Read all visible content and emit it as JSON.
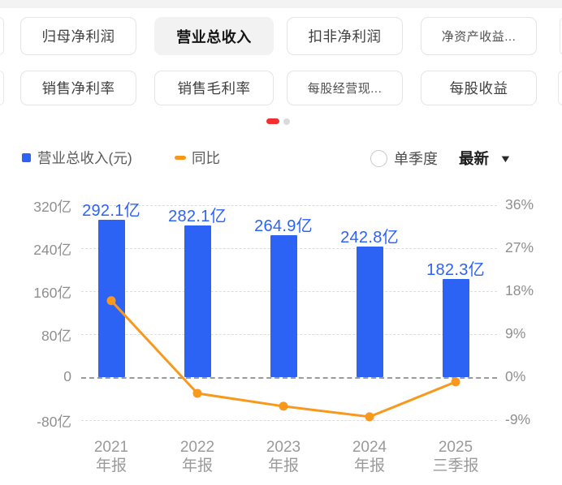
{
  "tabs": {
    "row1": [
      {
        "label": "归母净利润",
        "selected": false
      },
      {
        "label": "营业总收入",
        "selected": true
      },
      {
        "label": "扣非净利润",
        "selected": false
      },
      {
        "label": "净资产收益...",
        "selected": false
      }
    ],
    "row2": [
      {
        "label": "销售净利率",
        "selected": false
      },
      {
        "label": "销售毛利率",
        "selected": false
      },
      {
        "label": "每股经营现...",
        "selected": false
      },
      {
        "label": "每股收益",
        "selected": false
      }
    ]
  },
  "pagination": {
    "active_color": "#F22F2F",
    "inactive_color": "#DADADA"
  },
  "legend": {
    "bar_label": "营业总收入(元)",
    "line_label": "同比",
    "bar_color": "#2D63F4",
    "line_color": "#F8981D"
  },
  "controls": {
    "single_quarter_label": "单季度",
    "latest_label": "最新",
    "caret": "▼"
  },
  "chart_data": {
    "type": "bar+line",
    "categories": [
      {
        "year": "2021",
        "period": "年报"
      },
      {
        "year": "2022",
        "period": "年报"
      },
      {
        "year": "2023",
        "period": "年报"
      },
      {
        "year": "2024",
        "period": "年报"
      },
      {
        "year": "2025",
        "period": "三季报"
      }
    ],
    "series": [
      {
        "name": "营业总收入(元)",
        "type": "bar",
        "unit": "亿",
        "values": [
          292.1,
          282.1,
          264.9,
          242.8,
          182.3
        ],
        "labels": [
          "292.1亿",
          "282.1亿",
          "264.9亿",
          "242.8亿",
          "182.3亿"
        ],
        "color": "#2D63F4",
        "label_color": "#2D63F4"
      },
      {
        "name": "同比",
        "type": "line",
        "unit": "%",
        "values": [
          16.0,
          -3.4,
          -6.1,
          -8.3,
          -1.0
        ],
        "color": "#F8981D"
      }
    ],
    "left_axis": {
      "tick_values": [
        320,
        240,
        160,
        80,
        0,
        -80
      ],
      "tick_labels": [
        "320亿",
        "240亿",
        "160亿",
        "80亿",
        "0",
        "-80亿"
      ],
      "unit": "亿"
    },
    "right_axis": {
      "tick_values": [
        36,
        27,
        18,
        9,
        0,
        -9
      ],
      "tick_labels": [
        "36%",
        "27%",
        "18%",
        "9%",
        "0%",
        "-9%"
      ],
      "unit": "%"
    },
    "grid": "dashed-horizontal",
    "legend_position": "top-left"
  }
}
